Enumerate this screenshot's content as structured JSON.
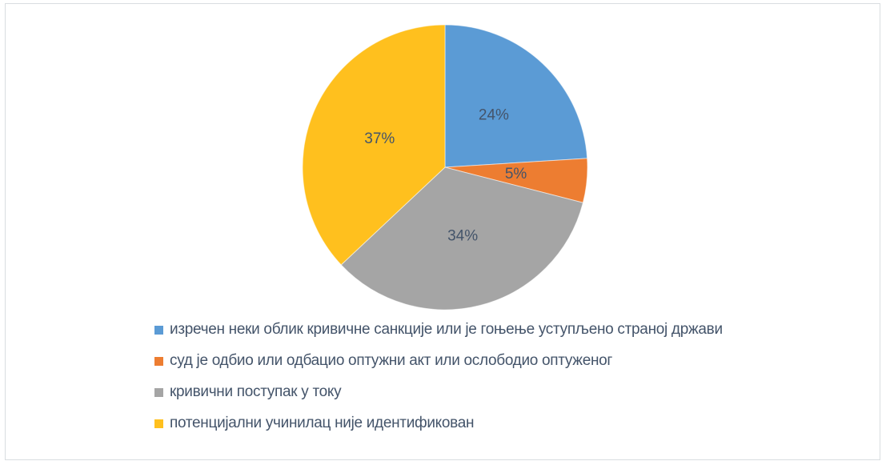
{
  "page": {
    "background_color": "#FFFFFF",
    "frame_border_color": "#D9DDE0"
  },
  "chart_data": {
    "type": "pie",
    "start_angle_deg": 0,
    "legend_position": "bottom-left",
    "data_label_color": "#44546A",
    "legend_text_color": "#44546A",
    "slices": [
      {
        "label": "изречен неки облик кривичне санкције или је гоњење уступљено страној држави",
        "value": 24,
        "data_label": "24%",
        "color": "#5B9BD5"
      },
      {
        "label": "суд је одбио или одбацио оптужни акт или ослободио оптуженог",
        "value": 5,
        "data_label": "5%",
        "color": "#ED7D31"
      },
      {
        "label": "кривични поступак у току",
        "value": 34,
        "data_label": "34%",
        "color": "#A5A5A5"
      },
      {
        "label": "потенцијални учинилац није идентификован",
        "value": 37,
        "data_label": "37%",
        "color": "#FFC01E"
      }
    ]
  }
}
